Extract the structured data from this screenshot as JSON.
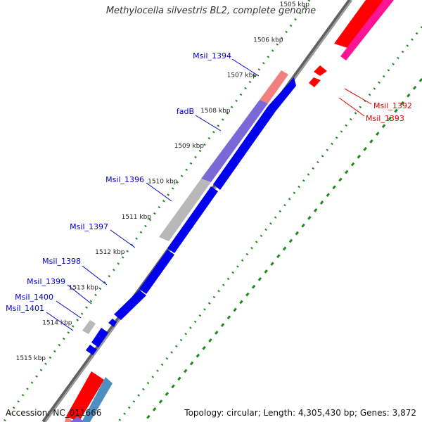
{
  "title": "Methylocella silvestris BL2, complete genome",
  "footer": {
    "accession_label": "Accession:",
    "accession": "NC_011666",
    "topology_label": "Topology:",
    "topology": "circular",
    "length_label": "Length:",
    "length": "4,305,430 bp",
    "genes_label": "Genes:",
    "genes": "3,872"
  },
  "ticks": [
    "1505 kbp",
    "1506 kbp",
    "1507 kbp",
    "1508 kbp",
    "1509 kbp",
    "1510 kbp",
    "1511 kbp",
    "1512 kbp",
    "1513 kbp",
    "1514 kbp",
    "1515 kbp"
  ],
  "gene_labels_left": [
    "Msil_1394",
    "fadB",
    "Msil_1396",
    "Msil_1397",
    "Msil_1398",
    "Msil_1399",
    "Msil_1400",
    "Msil_1401"
  ],
  "gene_labels_right": [
    "Msil_1392",
    "Msil_1393"
  ],
  "colors": {
    "blue": "#0000ee",
    "red": "#ff0000",
    "pink": "#ff1493",
    "salmon": "#f08080",
    "purple": "#7b68d8",
    "gray": "#b8b8b8",
    "steelblue": "#4f8fbf",
    "dots": "#1a8a1a",
    "backbone": "#808080",
    "label_blue": "#0000cc",
    "label_red": "#dd0000"
  }
}
